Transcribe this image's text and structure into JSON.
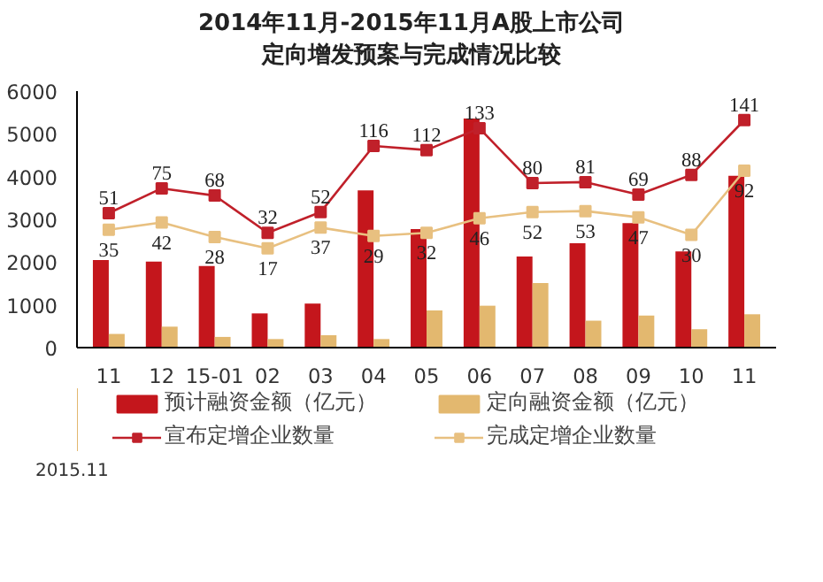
{
  "chart_data": {
    "type": "bar",
    "title": "2014年11月-2015年11月A股上市公司定向增发预案与完成情况比较",
    "categories": [
      "11",
      "12",
      "15-01",
      "02",
      "03",
      "04",
      "05",
      "06",
      "07",
      "08",
      "09",
      "10",
      "11"
    ],
    "ylim": [
      0,
      6000
    ],
    "yticks": [
      0,
      1000,
      2000,
      3000,
      4000,
      5000,
      6000
    ],
    "y2lim": [
      -79,
      169
    ],
    "series": [
      {
        "name": "预计融资金额（亿元）",
        "color": "#c4161c",
        "values": [
          2050,
          2010,
          1910,
          800,
          1030,
          3680,
          2770,
          5360,
          2130,
          2440,
          2910,
          2250,
          4020
        ]
      },
      {
        "name": "定向融资金额（亿元）",
        "color": "#e3b86f",
        "values": [
          320,
          490,
          250,
          200,
          290,
          200,
          870,
          980,
          1510,
          630,
          750,
          430,
          780
        ]
      },
      {
        "name": "宣布定增企业数量",
        "type": "line",
        "axis": "y2",
        "color": "#c0202a",
        "values": [
          51,
          75,
          68,
          32,
          52,
          116,
          112,
          133,
          80,
          81,
          69,
          88,
          141
        ],
        "value_labels": [
          "51",
          "75",
          "68",
          "32",
          "52",
          "116",
          "112",
          "133",
          "80",
          "81",
          "69",
          "88",
          "141"
        ]
      },
      {
        "name": "完成定增企业数量",
        "type": "line",
        "axis": "y2",
        "color": "#e8c080",
        "values": [
          35,
          42,
          28,
          17,
          37,
          29,
          32,
          46,
          52,
          53,
          47,
          30,
          92
        ],
        "value_labels": [
          "35",
          "42",
          "28",
          "17",
          "37",
          "29",
          "32",
          "46",
          "52",
          "53",
          "47",
          "30",
          "92"
        ]
      }
    ],
    "marker": "square",
    "grid": false,
    "legend": "bottom",
    "annotations": [
      "2015.11"
    ]
  }
}
